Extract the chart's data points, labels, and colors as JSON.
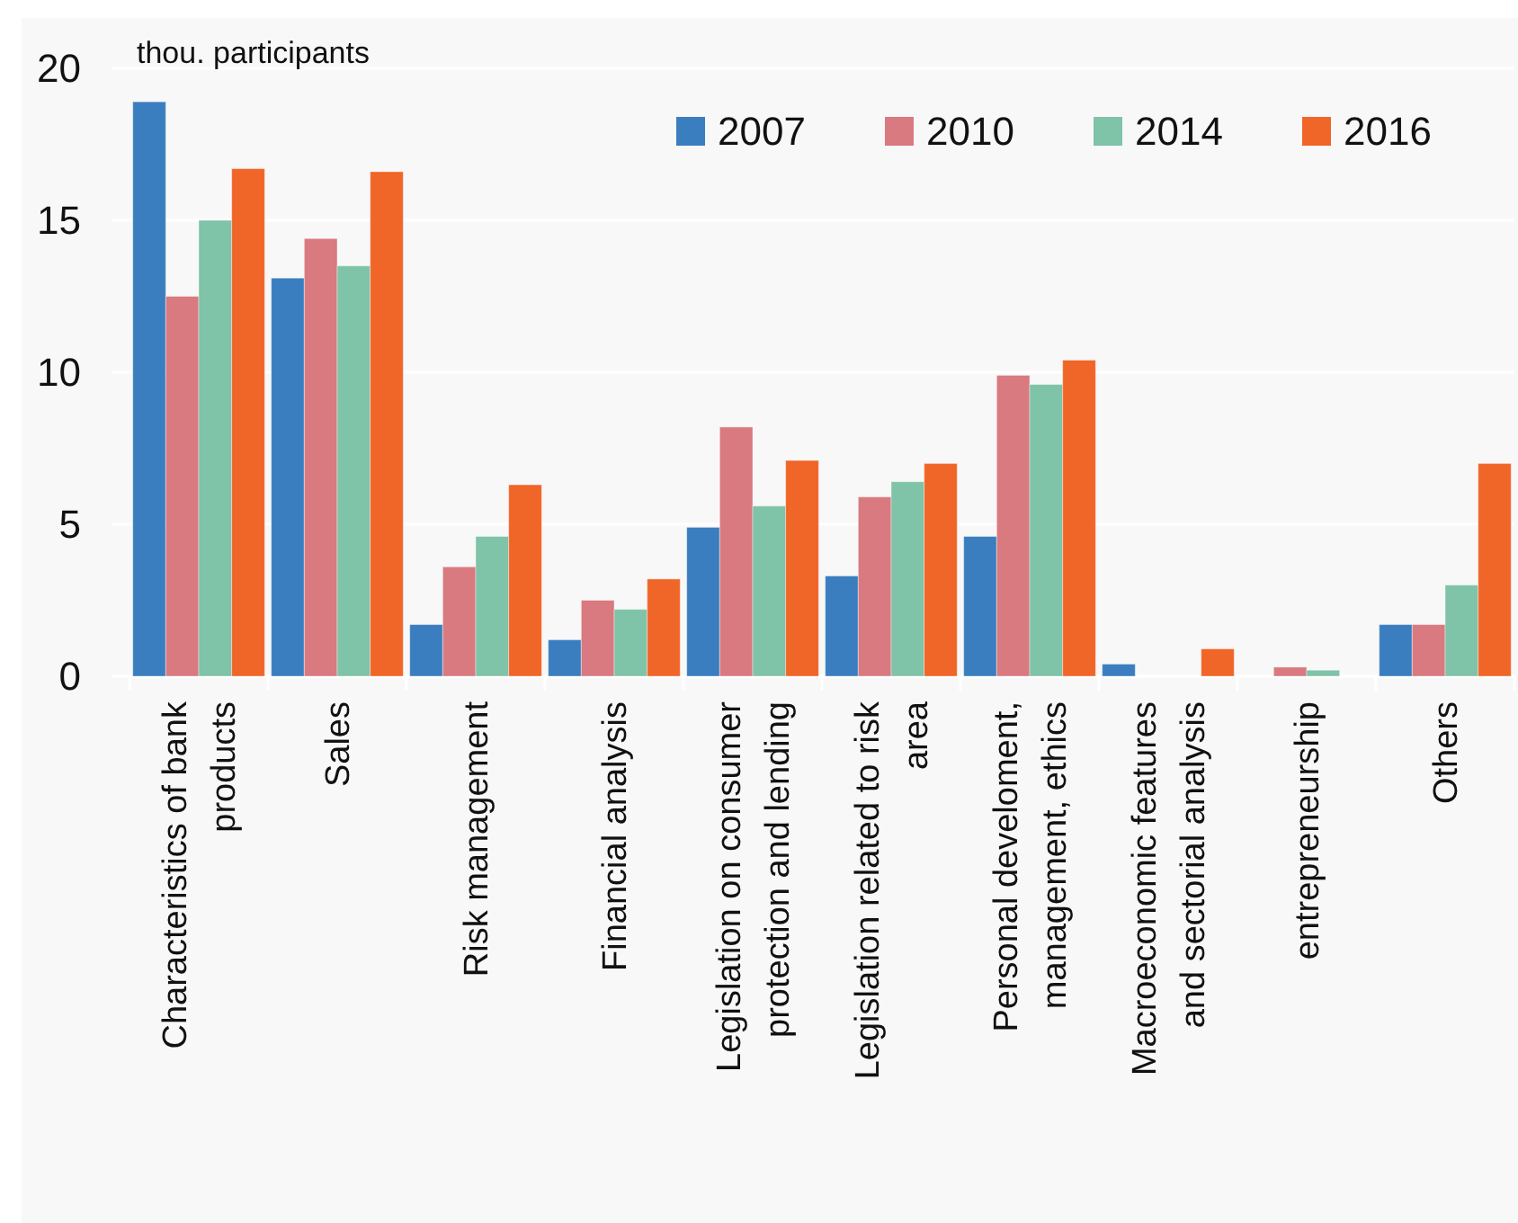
{
  "chart_data": {
    "type": "bar",
    "ylabel": "thou. participants",
    "categories": [
      "Characteristics of bank\nproducts",
      "Sales",
      "Risk management",
      "Financial analysis",
      "Legislation on consumer\nprotection and lending",
      "Legislation related to risk\narea",
      "Personal develoment,\nmanagement, ethics",
      "Macroeconomic features\nand sectorial analysis",
      "entrepreneurship",
      "Others"
    ],
    "series": [
      {
        "name": "2007",
        "color": "#3a7ebf",
        "values": [
          18.9,
          13.1,
          1.7,
          1.2,
          4.9,
          3.3,
          4.6,
          0.4,
          0,
          1.7
        ]
      },
      {
        "name": "2010",
        "color": "#d87a80",
        "values": [
          12.5,
          14.4,
          3.6,
          2.5,
          8.2,
          5.9,
          9.9,
          0,
          0.3,
          1.7
        ]
      },
      {
        "name": "2014",
        "color": "#7fc3a8",
        "values": [
          15.0,
          13.5,
          4.6,
          2.2,
          5.6,
          6.4,
          9.6,
          0,
          0.2,
          3.0
        ]
      },
      {
        "name": "2016",
        "color": "#f06528",
        "values": [
          16.7,
          16.6,
          6.3,
          3.2,
          7.1,
          7.0,
          10.4,
          0.9,
          0,
          7.0
        ]
      }
    ],
    "ylim": [
      0,
      20
    ],
    "yticks": [
      0,
      5,
      10,
      15,
      20
    ],
    "grid": "y",
    "legend": "top right"
  }
}
